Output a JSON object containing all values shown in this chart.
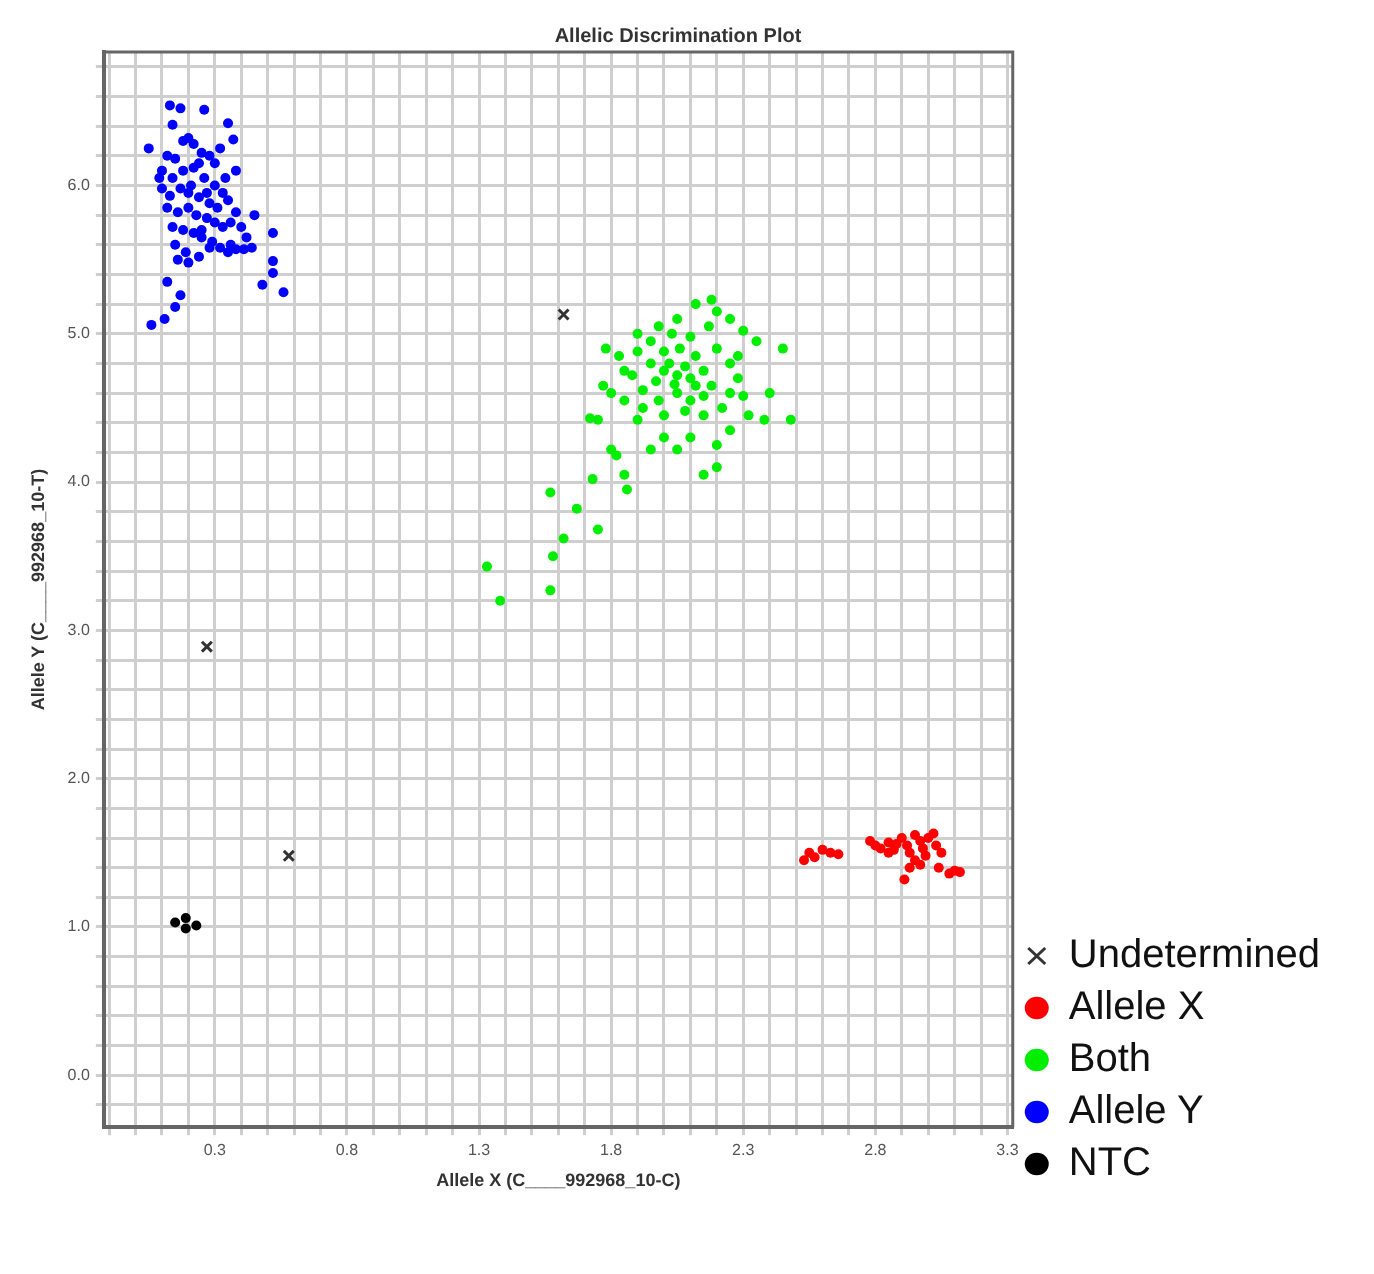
{
  "chart_data": {
    "type": "scatter",
    "title": "Allelic Discrimination Plot",
    "xlabel": "Allele X (C____992968_10-C)",
    "ylabel": "Allele Y (C____992968_10-T)",
    "xlim": [
      -0.12,
      3.32
    ],
    "ylim": [
      -0.35,
      6.9
    ],
    "xticks": [
      {
        "value": -0.1,
        "label": null
      },
      {
        "value": 0,
        "label": null
      },
      {
        "value": 0.1,
        "label": null
      },
      {
        "value": 0.2,
        "label": null
      },
      0.3,
      {
        "value": 0.4,
        "label": null
      },
      {
        "value": 0.5,
        "label": null
      },
      {
        "value": 0.6,
        "label": null
      },
      {
        "value": 0.7,
        "label": null
      },
      0.8,
      {
        "value": 0.9,
        "label": null
      },
      {
        "value": 1.0,
        "label": null
      },
      {
        "value": 1.1,
        "label": null
      },
      {
        "value": 1.2,
        "label": null
      },
      1.3,
      {
        "value": 1.4,
        "label": null
      },
      {
        "value": 1.5,
        "label": null
      },
      {
        "value": 1.6,
        "label": null
      },
      {
        "value": 1.7,
        "label": null
      },
      1.8,
      {
        "value": 1.9,
        "label": null
      },
      {
        "value": 2.0,
        "label": null
      },
      {
        "value": 2.1,
        "label": null
      },
      {
        "value": 2.2,
        "label": null
      },
      2.3,
      {
        "value": 2.4,
        "label": null
      },
      {
        "value": 2.5,
        "label": null
      },
      {
        "value": 2.6,
        "label": null
      },
      {
        "value": 2.7,
        "label": null
      },
      2.8,
      {
        "value": 2.9,
        "label": null
      },
      {
        "value": 3.0,
        "label": null
      },
      {
        "value": 3.1,
        "label": null
      },
      {
        "value": 3.2,
        "label": null
      },
      3.3
    ],
    "yticks": [
      {
        "value": -0.2,
        "label": null
      },
      {
        "value": 0,
        "label": "0.0"
      },
      {
        "value": 0.2,
        "label": null
      },
      {
        "value": 0.4,
        "label": null
      },
      {
        "value": 0.6,
        "label": null
      },
      {
        "value": 0.8,
        "label": null
      },
      {
        "value": 1,
        "label": "1.0"
      },
      {
        "value": 1.2,
        "label": null
      },
      {
        "value": 1.4,
        "label": null
      },
      {
        "value": 1.6,
        "label": null
      },
      {
        "value": 1.8,
        "label": null
      },
      {
        "value": 2,
        "label": "2.0"
      },
      {
        "value": 2.2,
        "label": null
      },
      {
        "value": 2.4,
        "label": null
      },
      {
        "value": 2.6,
        "label": null
      },
      {
        "value": 2.8,
        "label": null
      },
      {
        "value": 3,
        "label": "3.0"
      },
      {
        "value": 3.2,
        "label": null
      },
      {
        "value": 3.4,
        "label": null
      },
      {
        "value": 3.6,
        "label": null
      },
      {
        "value": 3.8,
        "label": null
      },
      {
        "value": 4,
        "label": "4.0"
      },
      {
        "value": 4.2,
        "label": null
      },
      {
        "value": 4.4,
        "label": null
      },
      {
        "value": 4.6,
        "label": null
      },
      {
        "value": 4.8,
        "label": null
      },
      {
        "value": 5,
        "label": "5.0"
      },
      {
        "value": 5.2,
        "label": null
      },
      {
        "value": 5.4,
        "label": null
      },
      {
        "value": 5.6,
        "label": null
      },
      {
        "value": 5.8,
        "label": null
      },
      {
        "value": 6,
        "label": "6.0"
      },
      {
        "value": 6.2,
        "label": null
      },
      {
        "value": 6.4,
        "label": null
      },
      {
        "value": 6.6,
        "label": null
      },
      {
        "value": 6.8,
        "label": null
      }
    ],
    "grid": true,
    "legend": "bottom right",
    "series": [
      {
        "name": "Undetermined",
        "color": "#333333",
        "marker": "cross",
        "x": [
          1.62,
          0.27,
          0.58
        ],
        "values": [
          5.13,
          2.89,
          1.48
        ]
      },
      {
        "name": "Allele X",
        "color": "#ff0000",
        "marker": "circle",
        "x": [
          2.53,
          2.55,
          2.57,
          2.6,
          2.63,
          2.66,
          2.78,
          2.8,
          2.82,
          2.85,
          2.87,
          2.88,
          2.9,
          2.92,
          2.93,
          2.95,
          2.97,
          2.98,
          2.95,
          2.93,
          2.97,
          2.91,
          3.0,
          3.02,
          3.03,
          3.05,
          3.04,
          3.08,
          3.1,
          3.12,
          2.85,
          2.99
        ],
        "values": [
          1.45,
          1.5,
          1.47,
          1.52,
          1.5,
          1.49,
          1.58,
          1.55,
          1.53,
          1.57,
          1.52,
          1.56,
          1.6,
          1.55,
          1.5,
          1.62,
          1.58,
          1.53,
          1.45,
          1.4,
          1.42,
          1.32,
          1.6,
          1.63,
          1.55,
          1.5,
          1.4,
          1.36,
          1.38,
          1.37,
          1.5,
          1.48
        ]
      },
      {
        "name": "Both",
        "color": "#00ee00",
        "marker": "circle",
        "x": [
          1.33,
          1.38,
          1.57,
          1.58,
          1.62,
          1.57,
          1.67,
          1.75,
          1.73,
          1.8,
          1.85,
          1.86,
          1.82,
          1.72,
          1.75,
          1.77,
          1.8,
          1.78,
          1.83,
          1.9,
          1.98,
          2.05,
          2.12,
          2.18,
          2.2,
          2.25,
          2.3,
          2.35,
          2.45,
          2.4,
          2.48,
          2.38,
          2.32,
          2.25,
          2.2,
          2.15,
          2.2,
          2.1,
          2.0,
          1.95,
          2.05,
          1.9,
          2.0,
          2.02,
          2.05,
          2.08,
          2.1,
          1.97,
          1.95,
          2.0,
          2.06,
          2.12,
          2.15,
          2.18,
          2.15,
          2.1,
          2.05,
          1.98,
          1.92,
          1.88,
          1.9,
          1.95,
          2.1,
          2.2,
          2.25,
          2.28,
          2.25,
          2.22,
          2.15,
          2.08,
          2.0,
          1.92,
          1.85,
          1.85,
          2.03,
          2.17,
          2.3,
          2.28,
          2.12,
          2.04
        ],
        "values": [
          3.43,
          3.2,
          3.27,
          3.5,
          3.62,
          3.93,
          3.82,
          3.68,
          4.02,
          4.22,
          4.05,
          3.95,
          4.18,
          4.43,
          4.42,
          4.65,
          4.6,
          4.9,
          4.85,
          5.0,
          5.05,
          5.1,
          5.2,
          5.23,
          5.15,
          5.1,
          5.02,
          4.95,
          4.9,
          4.6,
          4.42,
          4.42,
          4.45,
          4.35,
          4.25,
          4.05,
          4.1,
          4.3,
          4.3,
          4.22,
          4.22,
          4.42,
          4.75,
          4.8,
          4.72,
          4.78,
          4.7,
          4.68,
          4.8,
          4.88,
          4.9,
          4.85,
          4.75,
          4.65,
          4.58,
          4.55,
          4.6,
          4.55,
          4.62,
          4.72,
          4.88,
          4.95,
          4.98,
          4.9,
          4.8,
          4.7,
          4.6,
          4.5,
          4.45,
          4.48,
          4.45,
          4.5,
          4.55,
          4.75,
          5.0,
          5.05,
          4.58,
          4.85,
          4.65,
          4.66
        ]
      },
      {
        "name": "Allele Y",
        "color": "#0000ff",
        "marker": "circle",
        "x": [
          0.06,
          0.11,
          0.15,
          0.17,
          0.12,
          0.56,
          0.48,
          0.52,
          0.52,
          0.52,
          0.05,
          0.13,
          0.17,
          0.26,
          0.35,
          0.37,
          0.14,
          0.18,
          0.2,
          0.22,
          0.25,
          0.28,
          0.3,
          0.15,
          0.12,
          0.1,
          0.14,
          0.18,
          0.22,
          0.26,
          0.3,
          0.34,
          0.33,
          0.1,
          0.13,
          0.17,
          0.2,
          0.24,
          0.28,
          0.31,
          0.35,
          0.38,
          0.12,
          0.16,
          0.2,
          0.23,
          0.27,
          0.3,
          0.33,
          0.36,
          0.4,
          0.42,
          0.14,
          0.18,
          0.22,
          0.25,
          0.29,
          0.32,
          0.36,
          0.38,
          0.41,
          0.44,
          0.15,
          0.19,
          0.24,
          0.28,
          0.2,
          0.16,
          0.35,
          0.25,
          0.21,
          0.27,
          0.24,
          0.32,
          0.38,
          0.45,
          0.09
        ],
        "values": [
          5.06,
          5.1,
          5.18,
          5.26,
          5.35,
          5.28,
          5.33,
          5.41,
          5.49,
          5.68,
          6.25,
          6.54,
          6.52,
          6.51,
          6.42,
          6.31,
          6.41,
          6.3,
          6.32,
          6.28,
          6.22,
          6.2,
          6.15,
          6.18,
          6.2,
          6.1,
          6.05,
          6.1,
          6.12,
          6.05,
          6.0,
          6.05,
          5.95,
          5.98,
          5.93,
          5.98,
          5.95,
          5.92,
          5.88,
          5.85,
          5.9,
          5.82,
          5.85,
          5.82,
          5.85,
          5.8,
          5.78,
          5.75,
          5.72,
          5.75,
          5.72,
          5.65,
          5.72,
          5.7,
          5.68,
          5.65,
          5.62,
          5.58,
          5.6,
          5.57,
          5.57,
          5.58,
          5.6,
          5.55,
          5.52,
          5.58,
          5.48,
          5.5,
          5.55,
          5.7,
          6.0,
          5.95,
          6.15,
          6.25,
          6.1,
          5.8,
          6.05
        ]
      },
      {
        "name": "NTC",
        "color": "#000000",
        "marker": "circle",
        "x": [
          0.15,
          0.19,
          0.19,
          0.23
        ],
        "values": [
          1.03,
          1.06,
          0.99,
          1.01
        ]
      }
    ]
  }
}
